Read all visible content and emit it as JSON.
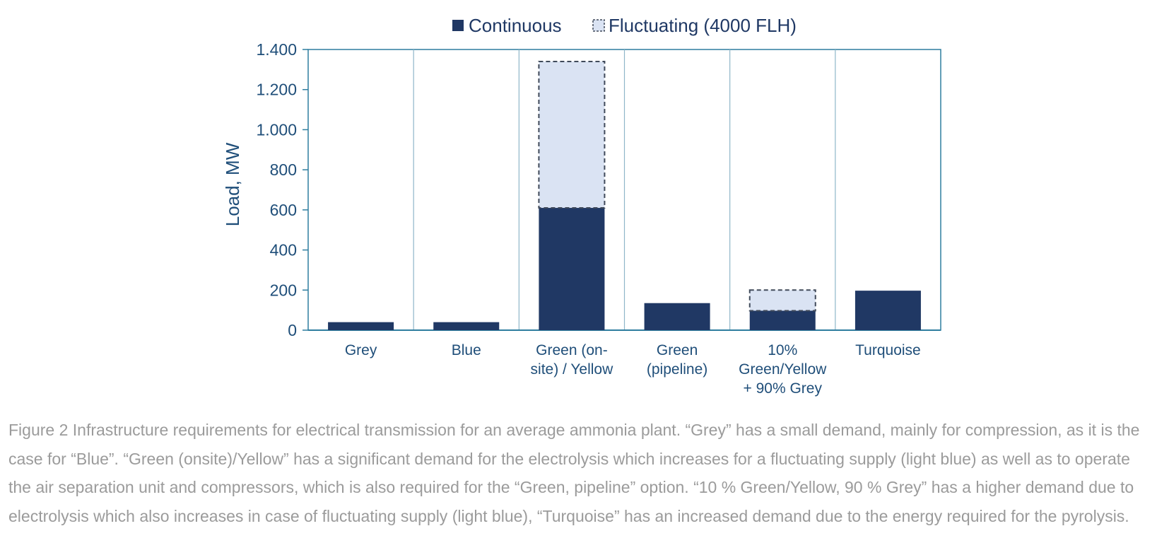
{
  "chart_data": {
    "type": "bar",
    "stacked": true,
    "categories": [
      [
        "Grey"
      ],
      [
        "Blue"
      ],
      [
        "Green (on-",
        "site) / Yellow"
      ],
      [
        "Green",
        "(pipeline)"
      ],
      [
        "10%",
        "Green/Yellow",
        "+ 90% Grey"
      ],
      [
        "Turquoise"
      ]
    ],
    "series": [
      {
        "name": "Continuous",
        "values": [
          40,
          40,
          610,
          135,
          97,
          197
        ],
        "color": "#203864"
      },
      {
        "name": "Fluctuating (4000 FLH)",
        "values": [
          0,
          0,
          730,
          0,
          103,
          0
        ],
        "color": "#dae3f3"
      }
    ],
    "ylabel": "Load, MW",
    "ylim": [
      0,
      1400
    ],
    "yticks": [
      0,
      200,
      400,
      600,
      800,
      1000,
      1200,
      1400
    ],
    "ytick_labels": [
      "0",
      "200",
      "400",
      "600",
      "800",
      "1.000",
      "1.200",
      "1.400"
    ],
    "legend_position": "top-center",
    "axis_color": "#2e7d9f"
  },
  "caption": "Figure  2 Infrastructure requirements for electrical transmission for an average ammonia plant. “Grey” has a small demand, mainly for compression, as it is the case for “Blue”.  “Green (onsite)/Yellow” has a significant demand for the electrolysis which increases for a fluctuating supply (light blue) as well as to operate the air separation unit and compressors, which is also required for the “Green, pipeline” option. “10 % Green/Yellow, 90 % Grey” has a higher demand due to electrolysis which also increases in case of fluctuating supply (light blue), “Turquoise” has an increased demand due to the energy required for the pyrolysis."
}
